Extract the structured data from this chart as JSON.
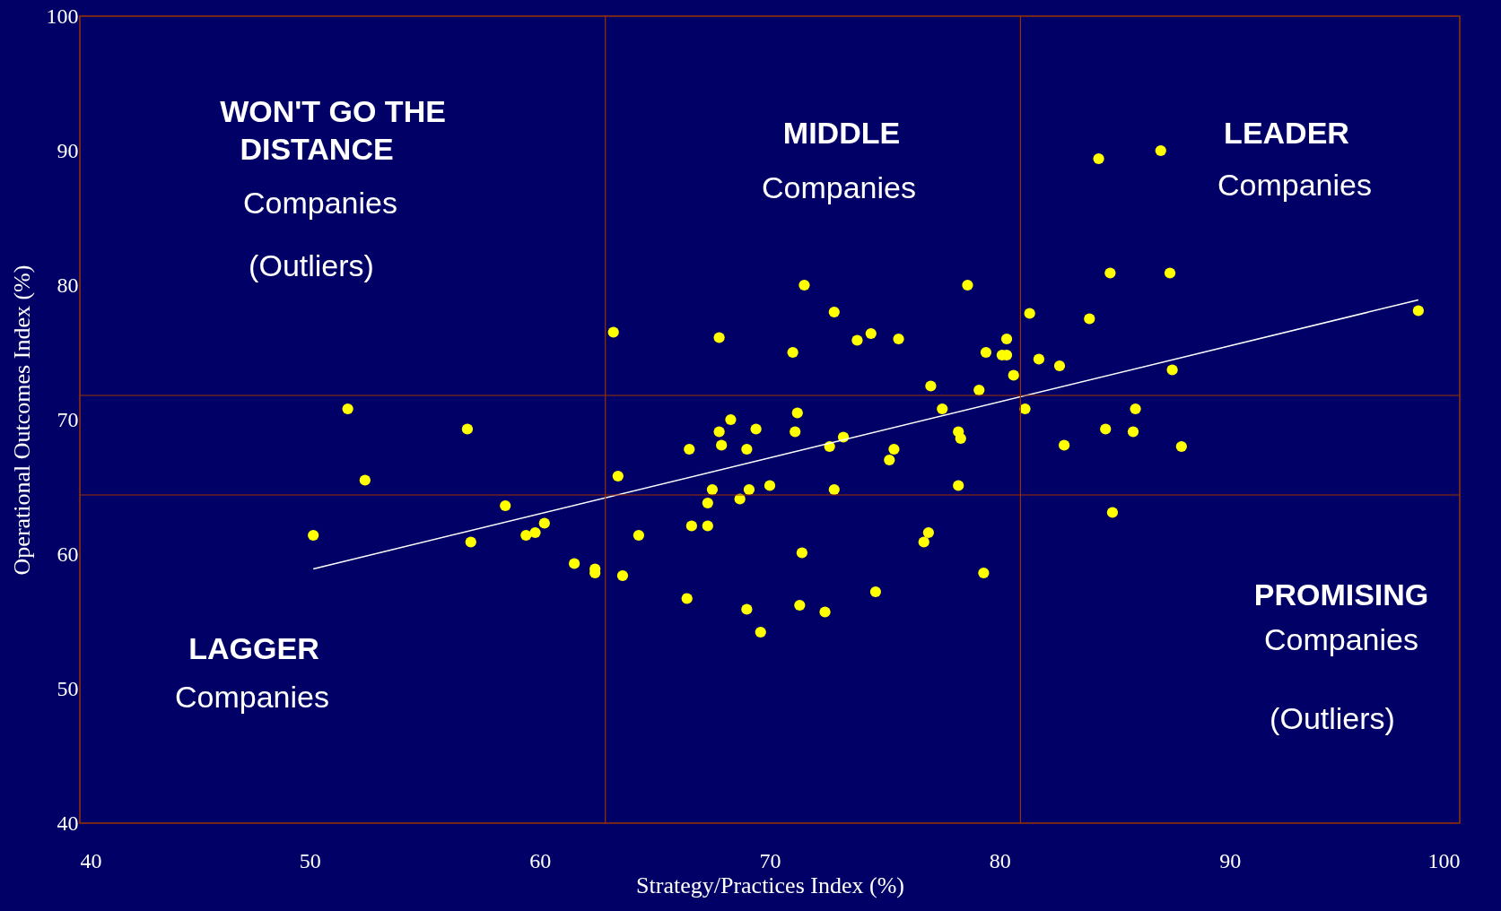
{
  "chart_data": {
    "type": "scatter",
    "xlabel": "Strategy/Practices Index (%)",
    "ylabel": "Operational Outcomes Index (%)",
    "xlim": [
      40,
      100
    ],
    "ylim": [
      40,
      100
    ],
    "xticks": [
      40,
      50,
      60,
      70,
      80,
      90,
      100
    ],
    "yticks": [
      40,
      50,
      60,
      70,
      80,
      90,
      100
    ],
    "grid": false,
    "series": [
      {
        "marker": "circle",
        "color": "#ffff00",
        "x": [
          50.15,
          51.65,
          52.4,
          56.85,
          57.0,
          58.5,
          59.4,
          59.8,
          60.2,
          61.5,
          62.4,
          62.4,
          63.2,
          63.4,
          63.6,
          64.3,
          66.4,
          66.5,
          66.6,
          67.3,
          67.3,
          67.5,
          67.8,
          67.8,
          67.9,
          68.3,
          68.7,
          69.0,
          69.0,
          69.1,
          69.4,
          69.6,
          70.0,
          71.0,
          71.1,
          71.2,
          71.3,
          71.4,
          71.5,
          72.6,
          72.8,
          72.8,
          72.4,
          73.2,
          73.8,
          74.4,
          74.6,
          75.2,
          75.4,
          75.6,
          76.7,
          76.9,
          77.0,
          77.5,
          78.2,
          78.2,
          78.3,
          78.6,
          79.1,
          79.3,
          79.4,
          80.1,
          80.3,
          80.3,
          80.6,
          81.1,
          81.3,
          81.7,
          82.6,
          82.8,
          83.9,
          84.3,
          84.6,
          84.8,
          84.9,
          85.8,
          85.9,
          87.0,
          87.4,
          87.5,
          87.9,
          98.2
        ],
        "values": [
          61.4,
          70.8,
          65.5,
          69.3,
          60.9,
          63.6,
          61.4,
          61.6,
          62.3,
          59.3,
          58.9,
          58.6,
          76.5,
          65.8,
          58.4,
          61.4,
          56.7,
          67.8,
          62.1,
          63.8,
          62.1,
          64.8,
          76.1,
          69.1,
          68.1,
          70.0,
          64.1,
          67.8,
          55.9,
          64.8,
          69.3,
          54.2,
          65.1,
          75.0,
          69.1,
          70.5,
          56.2,
          60.1,
          80.0,
          68.0,
          78.0,
          64.8,
          55.7,
          68.7,
          75.9,
          76.4,
          57.2,
          67.0,
          67.8,
          76.0,
          60.9,
          61.6,
          72.5,
          70.8,
          69.1,
          65.1,
          68.6,
          80.0,
          72.2,
          58.6,
          75.0,
          74.8,
          74.8,
          76.0,
          73.3,
          70.8,
          77.9,
          74.5,
          74.0,
          68.1,
          77.5,
          89.4,
          69.3,
          80.9,
          63.1,
          69.1,
          70.8,
          90.0,
          80.9,
          73.7,
          68.0,
          78.1
        ]
      },
      {
        "type": "line",
        "color": "#ffffff",
        "x": [
          50.15,
          98.2
        ],
        "values": [
          58.9,
          78.9
        ]
      }
    ],
    "ref_lines": [
      {
        "axis": "x",
        "value": 62.85,
        "color": "#993300"
      },
      {
        "axis": "x",
        "value": 80.9,
        "color": "#993300"
      },
      {
        "axis": "y",
        "value": 64.4,
        "color": "#993300"
      },
      {
        "axis": "y",
        "value": 71.8,
        "color": "#993300"
      }
    ],
    "annotations": [
      "WON'T GO THE",
      "DISTANCE",
      "Companies",
      "(Outliers)",
      "MIDDLE",
      "Companies",
      "LEADER",
      "Companies",
      "PROMISING",
      "Companies",
      "(Outliers)",
      "LAGGER",
      "Companies"
    ]
  }
}
